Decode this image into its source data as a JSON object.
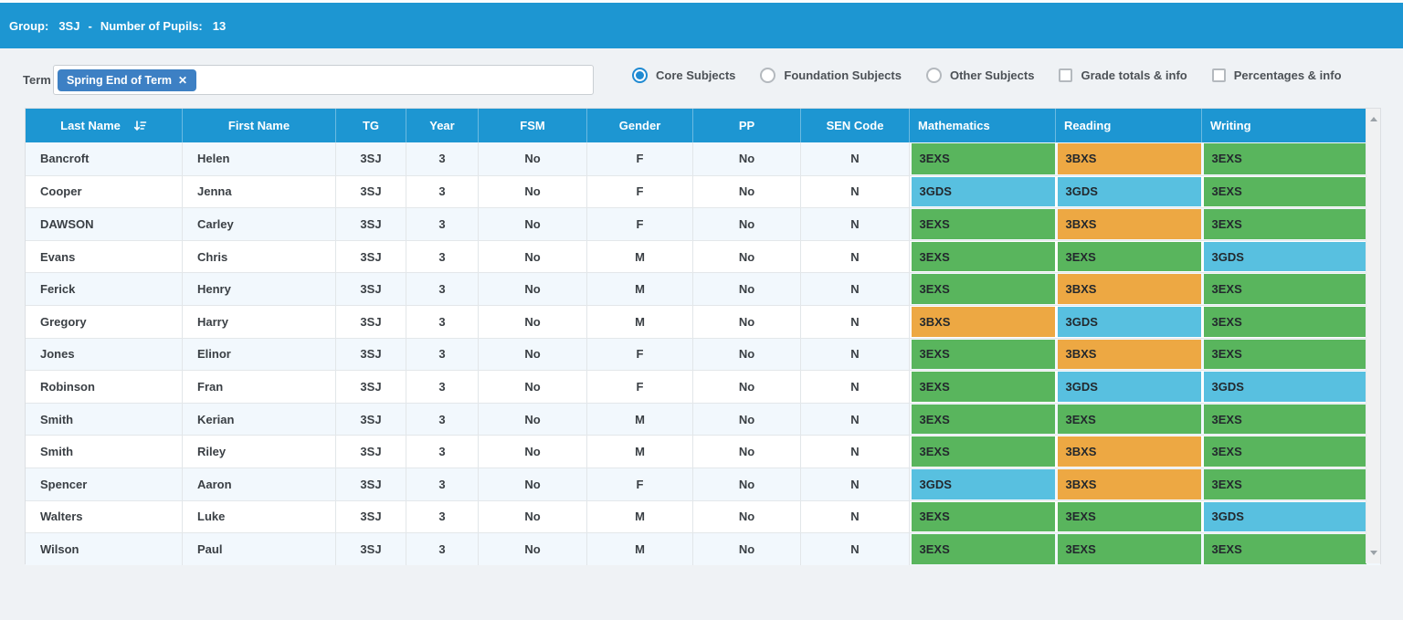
{
  "topbar": {
    "group_label": "Group:",
    "group_value": "3SJ",
    "separator": "-",
    "pupils_label": "Number of Pupils:",
    "pupils_value": "13"
  },
  "filters": {
    "term_label": "Term",
    "term_chip": "Spring End of Term",
    "chip_close_icon": "✕",
    "radios": [
      {
        "label": "Core Subjects",
        "selected": true
      },
      {
        "label": "Foundation Subjects",
        "selected": false
      },
      {
        "label": "Other Subjects",
        "selected": false
      }
    ],
    "checkboxes": [
      {
        "label": "Grade totals & info",
        "checked": false
      },
      {
        "label": "Percentages & info",
        "checked": false
      }
    ]
  },
  "colors": {
    "green": "#59b55d",
    "orange": "#eda843",
    "blue": "#58c0e0",
    "header_blue": "#1d96d2",
    "chip_blue": "#3d80c4"
  },
  "table": {
    "columns": [
      {
        "key": "last",
        "label": "Last Name",
        "align": "name",
        "sort_icon": "sort-descending-icon"
      },
      {
        "key": "first",
        "label": "First Name",
        "align": "name"
      },
      {
        "key": "tg",
        "label": "TG",
        "align": "center"
      },
      {
        "key": "year",
        "label": "Year",
        "align": "center"
      },
      {
        "key": "fsm",
        "label": "FSM",
        "align": "center"
      },
      {
        "key": "gender",
        "label": "Gender",
        "align": "center"
      },
      {
        "key": "pp",
        "label": "PP",
        "align": "center"
      },
      {
        "key": "sen",
        "label": "SEN Code",
        "align": "center"
      },
      {
        "grade_index": 0,
        "label": "Mathematics",
        "align": "grade"
      },
      {
        "grade_index": 1,
        "label": "Reading",
        "align": "grade"
      },
      {
        "grade_index": 2,
        "label": "Writing",
        "align": "grade"
      }
    ],
    "rows": [
      {
        "last": "Bancroft",
        "first": "Helen",
        "tg": "3SJ",
        "year": "3",
        "fsm": "No",
        "gender": "F",
        "pp": "No",
        "sen": "N",
        "grades": [
          {
            "v": "3EXS",
            "c": "green"
          },
          {
            "v": "3BXS",
            "c": "orange"
          },
          {
            "v": "3EXS",
            "c": "green"
          }
        ]
      },
      {
        "last": "Cooper",
        "first": "Jenna",
        "tg": "3SJ",
        "year": "3",
        "fsm": "No",
        "gender": "F",
        "pp": "No",
        "sen": "N",
        "grades": [
          {
            "v": "3GDS",
            "c": "blue"
          },
          {
            "v": "3GDS",
            "c": "blue"
          },
          {
            "v": "3EXS",
            "c": "green"
          }
        ]
      },
      {
        "last": "DAWSON",
        "first": "Carley",
        "tg": "3SJ",
        "year": "3",
        "fsm": "No",
        "gender": "F",
        "pp": "No",
        "sen": "N",
        "grades": [
          {
            "v": "3EXS",
            "c": "green"
          },
          {
            "v": "3BXS",
            "c": "orange"
          },
          {
            "v": "3EXS",
            "c": "green"
          }
        ]
      },
      {
        "last": "Evans",
        "first": "Chris",
        "tg": "3SJ",
        "year": "3",
        "fsm": "No",
        "gender": "M",
        "pp": "No",
        "sen": "N",
        "grades": [
          {
            "v": "3EXS",
            "c": "green"
          },
          {
            "v": "3EXS",
            "c": "green"
          },
          {
            "v": "3GDS",
            "c": "blue"
          }
        ]
      },
      {
        "last": "Ferick",
        "first": "Henry",
        "tg": "3SJ",
        "year": "3",
        "fsm": "No",
        "gender": "M",
        "pp": "No",
        "sen": "N",
        "grades": [
          {
            "v": "3EXS",
            "c": "green"
          },
          {
            "v": "3BXS",
            "c": "orange"
          },
          {
            "v": "3EXS",
            "c": "green"
          }
        ]
      },
      {
        "last": "Gregory",
        "first": "Harry",
        "tg": "3SJ",
        "year": "3",
        "fsm": "No",
        "gender": "M",
        "pp": "No",
        "sen": "N",
        "grades": [
          {
            "v": "3BXS",
            "c": "orange"
          },
          {
            "v": "3GDS",
            "c": "blue"
          },
          {
            "v": "3EXS",
            "c": "green"
          }
        ]
      },
      {
        "last": "Jones",
        "first": "Elinor",
        "tg": "3SJ",
        "year": "3",
        "fsm": "No",
        "gender": "F",
        "pp": "No",
        "sen": "N",
        "grades": [
          {
            "v": "3EXS",
            "c": "green"
          },
          {
            "v": "3BXS",
            "c": "orange"
          },
          {
            "v": "3EXS",
            "c": "green"
          }
        ]
      },
      {
        "last": "Robinson",
        "first": "Fran",
        "tg": "3SJ",
        "year": "3",
        "fsm": "No",
        "gender": "F",
        "pp": "No",
        "sen": "N",
        "grades": [
          {
            "v": "3EXS",
            "c": "green"
          },
          {
            "v": "3GDS",
            "c": "blue"
          },
          {
            "v": "3GDS",
            "c": "blue"
          }
        ]
      },
      {
        "last": "Smith",
        "first": "Kerian",
        "tg": "3SJ",
        "year": "3",
        "fsm": "No",
        "gender": "M",
        "pp": "No",
        "sen": "N",
        "grades": [
          {
            "v": "3EXS",
            "c": "green"
          },
          {
            "v": "3EXS",
            "c": "green"
          },
          {
            "v": "3EXS",
            "c": "green"
          }
        ]
      },
      {
        "last": "Smith",
        "first": "Riley",
        "tg": "3SJ",
        "year": "3",
        "fsm": "No",
        "gender": "M",
        "pp": "No",
        "sen": "N",
        "grades": [
          {
            "v": "3EXS",
            "c": "green"
          },
          {
            "v": "3BXS",
            "c": "orange"
          },
          {
            "v": "3EXS",
            "c": "green"
          }
        ]
      },
      {
        "last": "Spencer",
        "first": "Aaron",
        "tg": "3SJ",
        "year": "3",
        "fsm": "No",
        "gender": "F",
        "pp": "No",
        "sen": "N",
        "grades": [
          {
            "v": "3GDS",
            "c": "blue"
          },
          {
            "v": "3BXS",
            "c": "orange"
          },
          {
            "v": "3EXS",
            "c": "green"
          }
        ]
      },
      {
        "last": "Walters",
        "first": "Luke",
        "tg": "3SJ",
        "year": "3",
        "fsm": "No",
        "gender": "M",
        "pp": "No",
        "sen": "N",
        "grades": [
          {
            "v": "3EXS",
            "c": "green"
          },
          {
            "v": "3EXS",
            "c": "green"
          },
          {
            "v": "3GDS",
            "c": "blue"
          }
        ]
      },
      {
        "last": "Wilson",
        "first": "Paul",
        "tg": "3SJ",
        "year": "3",
        "fsm": "No",
        "gender": "M",
        "pp": "No",
        "sen": "N",
        "grades": [
          {
            "v": "3EXS",
            "c": "green"
          },
          {
            "v": "3EXS",
            "c": "green"
          },
          {
            "v": "3EXS",
            "c": "green"
          }
        ]
      }
    ]
  }
}
